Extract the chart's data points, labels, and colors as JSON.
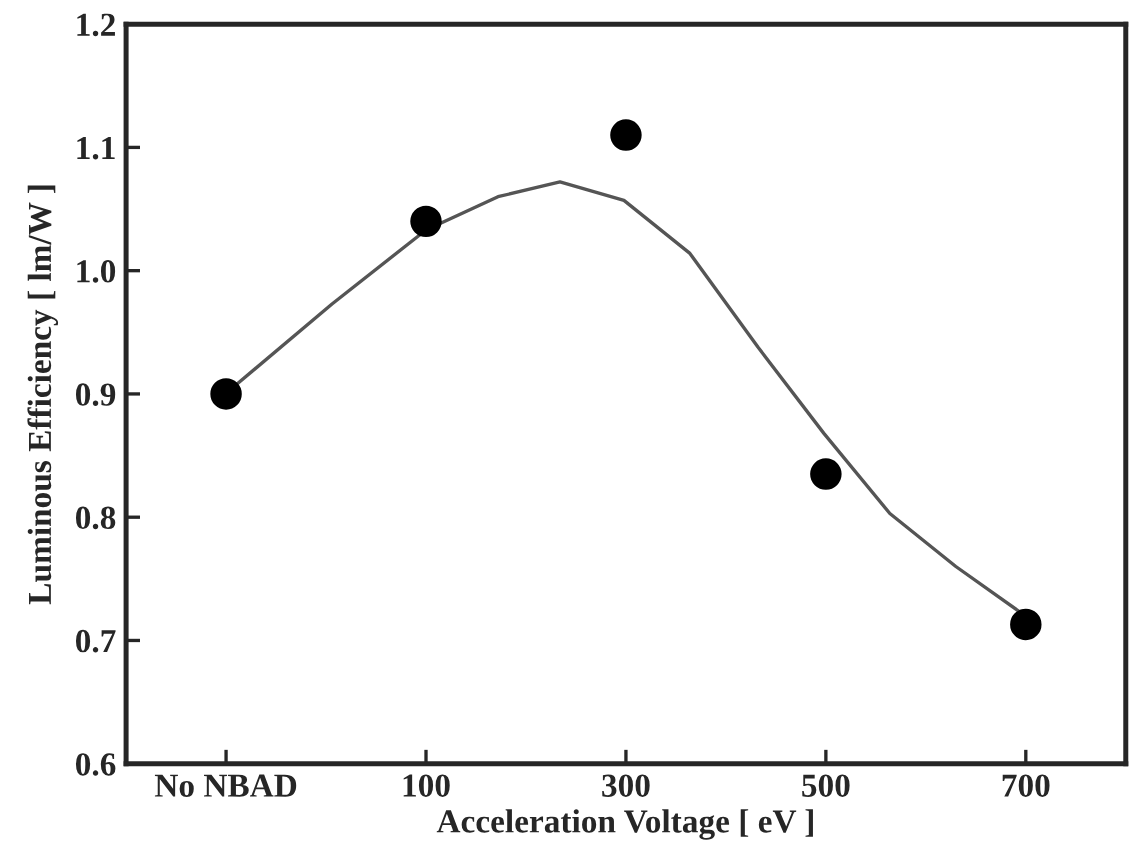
{
  "chart_data": {
    "type": "scatter",
    "xlabel": "Acceleration Voltage [ eV ]",
    "ylabel": "Luminous Efficiency [ lm/W ]",
    "xlim": [
      -200,
      800
    ],
    "xticks": [
      {
        "value": -100,
        "label": "No NBAD"
      },
      100,
      300,
      500,
      700
    ],
    "ylim": [
      0.6,
      1.2
    ],
    "yticks": [
      0.6,
      0.7,
      0.8,
      0.9,
      {
        "value": 1.0,
        "label": "1.0"
      },
      1.1,
      1.2
    ],
    "grid": false,
    "marker": "circle",
    "series": [
      {
        "color": "#000000",
        "x": [
          -100,
          100,
          300,
          500,
          700
        ],
        "values": [
          0.9,
          1.04,
          1.11,
          0.835,
          0.713
        ]
      },
      {
        "type": "line",
        "color": "#555555",
        "marker": "none",
        "x": [
          -92,
          6,
          100,
          172,
          234,
          298,
          364,
          432,
          498,
          564,
          630,
          696
        ],
        "values": [
          0.906,
          0.973,
          1.033,
          1.06,
          1.072,
          1.057,
          1.014,
          0.938,
          0.868,
          0.803,
          0.76,
          0.722
        ]
      }
    ]
  }
}
